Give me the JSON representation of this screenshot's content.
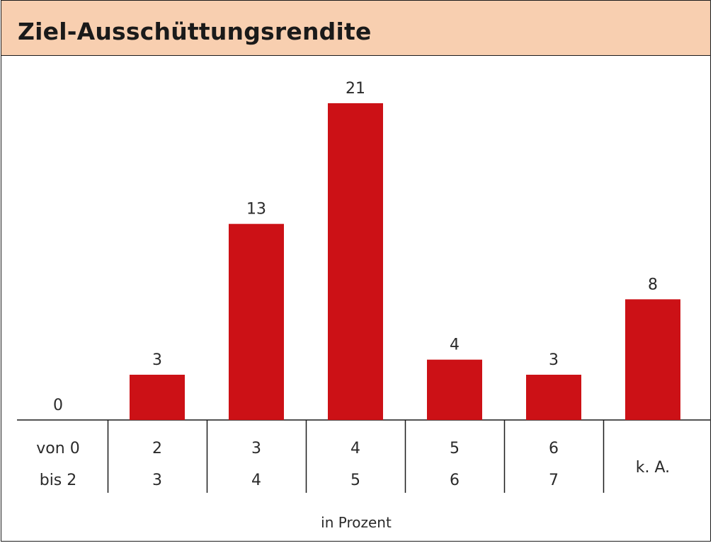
{
  "chart_data": {
    "type": "bar",
    "title": "Ziel-Ausschüttungsrendite",
    "xlabel": "in Prozent",
    "ylabel": "",
    "categories": [
      {
        "line1": "von 0",
        "line2": "bis 2"
      },
      {
        "line1": "2",
        "line2": "3"
      },
      {
        "line1": "3",
        "line2": "4"
      },
      {
        "line1": "4",
        "line2": "5"
      },
      {
        "line1": "5",
        "line2": "6"
      },
      {
        "line1": "6",
        "line2": "7"
      },
      {
        "line1": "",
        "line2": "k. A."
      }
    ],
    "values": [
      0,
      3,
      13,
      21,
      4,
      3,
      8
    ],
    "ylim": [
      0,
      21
    ],
    "grid": false,
    "colors": {
      "bar": "#cc1116",
      "header_bg": "#f8cfb0",
      "axis": "#1a1a1a",
      "text": "#2a2a2a"
    }
  }
}
